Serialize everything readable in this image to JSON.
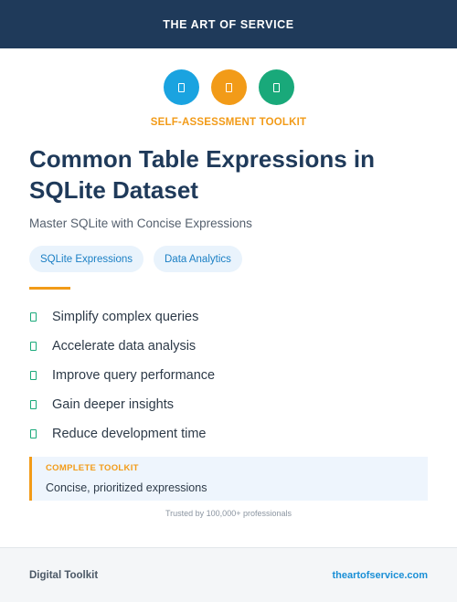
{
  "header": {
    "brand": "THE ART OF SERVICE"
  },
  "icons": [
    {
      "name": "blue-circle-icon",
      "color": "#1aa3e0"
    },
    {
      "name": "orange-circle-icon",
      "color": "#f29b18"
    },
    {
      "name": "green-circle-icon",
      "color": "#19a97a"
    }
  ],
  "eyebrow": "SELF-ASSESSMENT TOOLKIT",
  "title": "Common Table Expressions in SQLite Dataset",
  "subtitle": "Master SQLite with Concise Expressions",
  "tags": [
    "SQLite Expressions",
    "Data Analytics"
  ],
  "benefits": [
    "Simplify complex queries",
    "Accelerate data analysis",
    "Improve query performance",
    "Gain deeper insights",
    "Reduce development time"
  ],
  "callout": {
    "label": "COMPLETE TOOLKIT",
    "text": "Concise, prioritized expressions"
  },
  "trusted": "Trusted by 100,000+ professionals",
  "footer": {
    "left": "Digital Toolkit",
    "right": "theartofservice.com"
  },
  "colors": {
    "navy": "#1f3a5a",
    "accent": "#f29b18",
    "link": "#1a8fd6"
  }
}
